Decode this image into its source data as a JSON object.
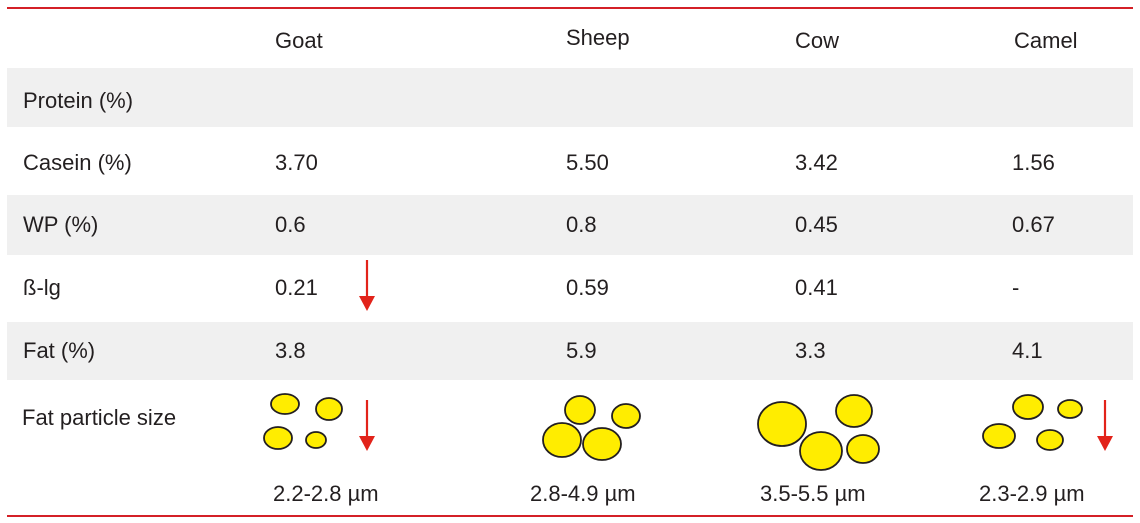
{
  "columns": [
    "Goat",
    "Sheep",
    "Cow",
    "Camel"
  ],
  "rows": [
    {
      "label": "Protein (%)",
      "values": [
        "",
        "",
        "",
        ""
      ]
    },
    {
      "label": "Casein (%)",
      "values": [
        "3.70",
        "5.50",
        "3.42",
        "1.56"
      ]
    },
    {
      "label": "WP (%)",
      "values": [
        "0.6",
        "0.8",
        "0.45",
        "0.67"
      ]
    },
    {
      "label": "ß-lg",
      "values": [
        "0.21",
        "0.59",
        "0.41",
        "-"
      ]
    },
    {
      "label": "Fat (%)",
      "values": [
        "3.8",
        "5.9",
        "3.3",
        "4.1"
      ]
    }
  ],
  "fat_particle": {
    "label": "Fat particle size",
    "sizes": [
      "2.2-2.8 µm",
      "2.8-4.9 µm",
      "3.5-5.5 µm",
      "2.3-2.9 µm"
    ]
  },
  "colors": {
    "rule": "#d42027",
    "band": "#f0f0f0",
    "globule_fill": "#ffed00",
    "arrow": "#e2231a"
  },
  "indicators": [
    {
      "row": "ß-lg",
      "column": "Goat",
      "icon": "down-arrow-icon"
    },
    {
      "row": "Fat particle size",
      "column": "Goat",
      "icon": "down-arrow-icon"
    },
    {
      "row": "Fat particle size",
      "column": "Camel",
      "icon": "down-arrow-icon"
    }
  ]
}
